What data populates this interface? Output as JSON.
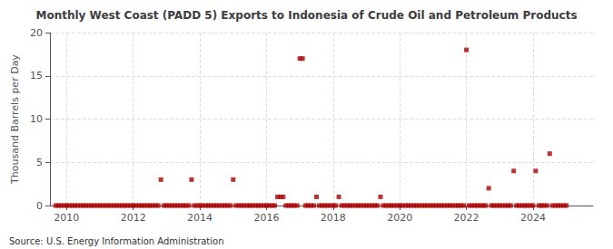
{
  "chart_data": {
    "type": "scatter",
    "title": "Monthly West Coast (PADD 5) Exports to Indonesia of Crude Oil and Petroleum Products",
    "ylabel": "Thousand Barrels per Day",
    "annotations": [
      "Source: U.S. Energy Information Administration"
    ],
    "color": "#aa0000",
    "marker": "square",
    "grid": true,
    "xlim": [
      2009.5,
      2025.8
    ],
    "ylim": [
      0,
      20
    ],
    "xticks": [
      2010,
      2012,
      2014,
      2016,
      2018,
      2020,
      2022,
      2024
    ],
    "yticks": [
      0,
      5,
      10,
      15,
      20
    ],
    "x": [
      2009.67,
      2009.75,
      2009.83,
      2009.92,
      2010,
      2010.08,
      2010.17,
      2010.25,
      2010.33,
      2010.42,
      2010.5,
      2010.58,
      2010.67,
      2010.75,
      2010.83,
      2010.92,
      2011,
      2011.08,
      2011.17,
      2011.25,
      2011.33,
      2011.42,
      2011.5,
      2011.58,
      2011.67,
      2011.75,
      2011.83,
      2011.92,
      2012,
      2012.08,
      2012.17,
      2012.25,
      2012.33,
      2012.42,
      2012.5,
      2012.58,
      2012.67,
      2012.75,
      2012.83,
      2012.92,
      2013,
      2013.08,
      2013.17,
      2013.25,
      2013.33,
      2013.42,
      2013.5,
      2013.58,
      2013.67,
      2013.75,
      2013.83,
      2013.92,
      2014,
      2014.08,
      2014.17,
      2014.25,
      2014.33,
      2014.42,
      2014.5,
      2014.58,
      2014.67,
      2014.75,
      2014.83,
      2014.92,
      2015,
      2015.08,
      2015.17,
      2015.25,
      2015.33,
      2015.42,
      2015.5,
      2015.58,
      2015.67,
      2015.75,
      2015.83,
      2015.92,
      2016,
      2016.08,
      2016.17,
      2016.25,
      2016.33,
      2016.42,
      2016.5,
      2016.58,
      2016.67,
      2016.75,
      2016.83,
      2016.92,
      2017,
      2017.08,
      2017.17,
      2017.25,
      2017.33,
      2017.42,
      2017.5,
      2017.58,
      2017.67,
      2017.75,
      2017.83,
      2017.92,
      2018,
      2018.08,
      2018.17,
      2018.25,
      2018.33,
      2018.42,
      2018.5,
      2018.58,
      2018.67,
      2018.75,
      2018.83,
      2018.92,
      2019,
      2019.08,
      2019.17,
      2019.25,
      2019.33,
      2019.42,
      2019.5,
      2019.58,
      2019.67,
      2019.75,
      2019.83,
      2019.92,
      2020,
      2020.08,
      2020.17,
      2020.25,
      2020.33,
      2020.42,
      2020.5,
      2020.58,
      2020.67,
      2020.75,
      2020.83,
      2020.92,
      2021,
      2021.08,
      2021.17,
      2021.25,
      2021.33,
      2021.42,
      2021.5,
      2021.58,
      2021.67,
      2021.75,
      2021.83,
      2021.92,
      2022,
      2022.08,
      2022.17,
      2022.25,
      2022.33,
      2022.42,
      2022.5,
      2022.58,
      2022.67,
      2022.75,
      2022.83,
      2022.92,
      2023,
      2023.08,
      2023.17,
      2023.25,
      2023.33,
      2023.42,
      2023.5,
      2023.58,
      2023.67,
      2023.75,
      2023.83,
      2023.92,
      2024,
      2024.08,
      2024.17,
      2024.25,
      2024.33,
      2024.42,
      2024.5,
      2024.58,
      2024.67,
      2024.75,
      2024.83,
      2024.92,
      2025
    ],
    "values": [
      0,
      0,
      0,
      0,
      0,
      0,
      0,
      0,
      0,
      0,
      0,
      0,
      0,
      0,
      0,
      0,
      0,
      0,
      0,
      0,
      0,
      0,
      0,
      0,
      0,
      0,
      0,
      0,
      0,
      0,
      0,
      0,
      0,
      0,
      0,
      0,
      0,
      0,
      3,
      0,
      0,
      0,
      0,
      0,
      0,
      0,
      0,
      0,
      0,
      3,
      0,
      0,
      0,
      0,
      0,
      0,
      0,
      0,
      0,
      0,
      0,
      0,
      0,
      0,
      3,
      0,
      0,
      0,
      0,
      0,
      0,
      0,
      0,
      0,
      0,
      0,
      0,
      0,
      0,
      0,
      1,
      1,
      1,
      0,
      0,
      0,
      0,
      0,
      17,
      17,
      0,
      0,
      0,
      0,
      1,
      0,
      0,
      0,
      0,
      0,
      0,
      0,
      1,
      0,
      0,
      0,
      0,
      0,
      0,
      0,
      0,
      0,
      0,
      0,
      0,
      0,
      0,
      1,
      0,
      0,
      0,
      0,
      0,
      0,
      0,
      0,
      0,
      0,
      0,
      0,
      0,
      0,
      0,
      0,
      0,
      0,
      0,
      0,
      0,
      0,
      0,
      0,
      0,
      0,
      0,
      0,
      0,
      0,
      18,
      0,
      0,
      0,
      0,
      0,
      0,
      0,
      2,
      0,
      0,
      0,
      0,
      0,
      0,
      0,
      0,
      4,
      0,
      0,
      0,
      0,
      0,
      0,
      0,
      4,
      0,
      0,
      0,
      0,
      6,
      0,
      0,
      0,
      0,
      0,
      0
    ]
  }
}
